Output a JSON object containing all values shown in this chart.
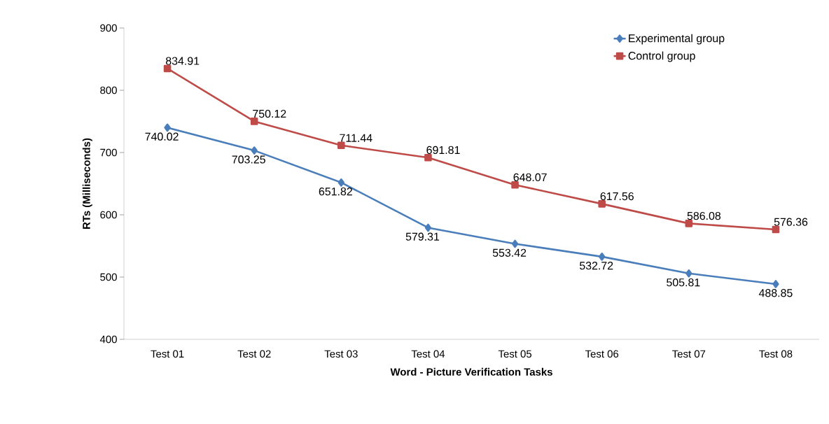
{
  "chart_data": {
    "type": "line",
    "xlabel": "Word - Picture Verification Tasks",
    "ylabel": "RTs (Milliseconds)",
    "categories": [
      "Test 01",
      "Test 02",
      "Test 03",
      "Test 04",
      "Test 05",
      "Test 06",
      "Test 07",
      "Test 08"
    ],
    "series": [
      {
        "name": "Experimental group",
        "color": "#4a7ebb",
        "marker": "diamond",
        "values": [
          740.02,
          703.25,
          651.82,
          579.31,
          553.42,
          532.72,
          505.81,
          488.85
        ]
      },
      {
        "name": "Control group",
        "color": "#be4b48",
        "marker": "square",
        "values": [
          834.91,
          750.12,
          711.44,
          691.81,
          648.07,
          617.56,
          586.08,
          576.36
        ]
      }
    ],
    "ylim": [
      400,
      900
    ],
    "yticks": [
      400,
      500,
      600,
      700,
      800,
      900
    ],
    "grid": false,
    "legend": "top right",
    "data_labels": true,
    "line_style": "solid"
  }
}
